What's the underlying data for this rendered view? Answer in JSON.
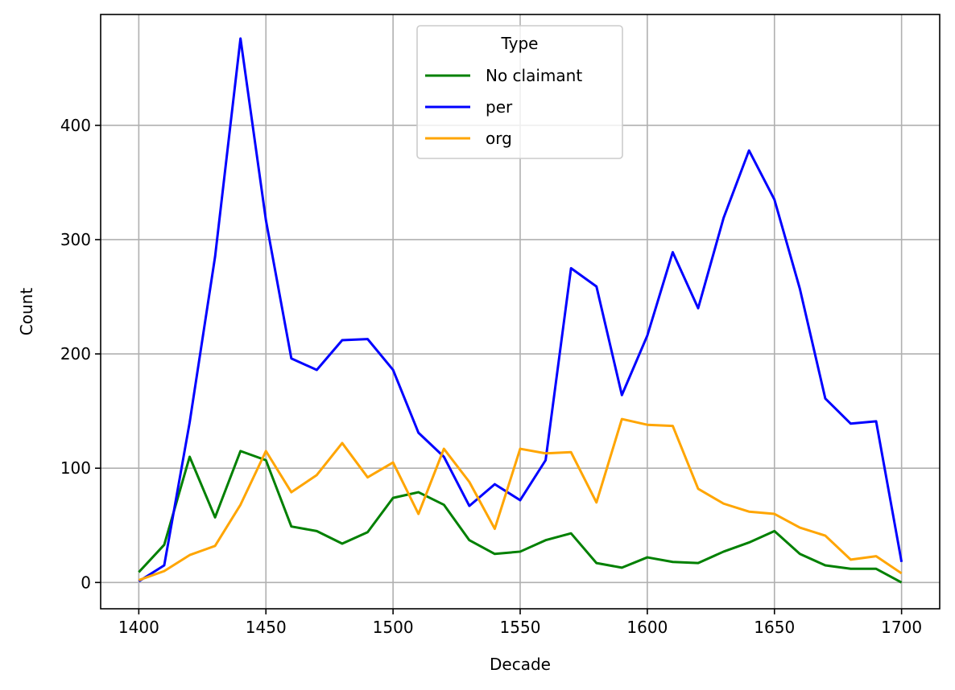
{
  "chart_data": {
    "type": "line",
    "title": "",
    "xlabel": "Decade",
    "ylabel": "Count",
    "xlim": [
      1385,
      1715
    ],
    "ylim": [
      -23,
      497
    ],
    "xticks": [
      1400,
      1450,
      1500,
      1550,
      1600,
      1650,
      1700
    ],
    "yticks": [
      0,
      100,
      200,
      300,
      400
    ],
    "grid": true,
    "legend": {
      "title": "Type",
      "placement": "top-center"
    },
    "x": [
      1400,
      1410,
      1420,
      1430,
      1440,
      1450,
      1460,
      1470,
      1480,
      1490,
      1500,
      1510,
      1520,
      1530,
      1540,
      1550,
      1560,
      1570,
      1580,
      1590,
      1600,
      1610,
      1620,
      1630,
      1640,
      1650,
      1660,
      1670,
      1680,
      1690,
      1700
    ],
    "series": [
      {
        "name": "No claimant",
        "color": "#008000",
        "values": [
          9,
          33,
          110,
          57,
          115,
          107,
          49,
          45,
          34,
          44,
          74,
          79,
          68,
          37,
          25,
          27,
          37,
          43,
          17,
          13,
          22,
          18,
          17,
          27,
          35,
          45,
          25,
          15,
          12,
          12,
          0
        ]
      },
      {
        "name": "per",
        "color": "#0000ff",
        "values": [
          1,
          15,
          140,
          285,
          476,
          317,
          196,
          186,
          212,
          213,
          186,
          131,
          110,
          67,
          86,
          72,
          107,
          275,
          259,
          164,
          216,
          289,
          240,
          319,
          378,
          335,
          257,
          161,
          139,
          141,
          18
        ]
      },
      {
        "name": "org",
        "color": "#ffa500",
        "values": [
          2,
          10,
          24,
          32,
          68,
          115,
          79,
          94,
          122,
          92,
          105,
          60,
          117,
          88,
          47,
          117,
          113,
          114,
          70,
          143,
          138,
          137,
          82,
          69,
          62,
          60,
          48,
          41,
          20,
          23,
          8
        ]
      }
    ]
  }
}
